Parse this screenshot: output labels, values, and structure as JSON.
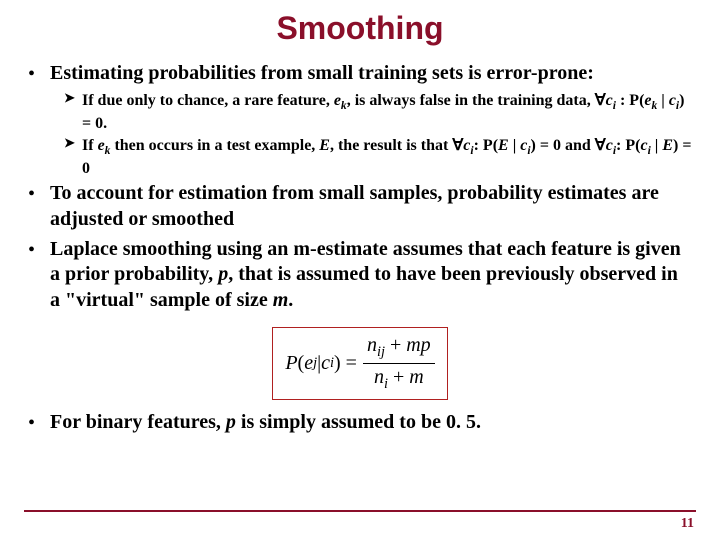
{
  "colors": {
    "title": "#8a0f2a",
    "body": "#000000",
    "rule": "#8a0f2a",
    "pagenum": "#8a0f2a",
    "formula_border": "#b02020"
  },
  "fonts": {
    "title_size": 32,
    "l1_size": 20,
    "l2_size": 16,
    "formula_size": 20,
    "pagenum_size": 14
  },
  "title": "Smoothing",
  "b1": "Estimating probabilities from small training sets is error-prone:",
  "b1a_pre": "If due only to chance, a rare feature, ",
  "b1a_ek": "e",
  "b1a_ek_sub": "k",
  "b1a_mid": ", is always false in the training data, ",
  "b1a_forall1": "∀",
  "b1a_ci": "c",
  "b1a_ci_sub": "i",
  "b1a_colon": " : P(",
  "b1a_ek2": "e",
  "b1a_ek2_sub": "k",
  "b1a_bar": " | ",
  "b1a_ci2": "c",
  "b1a_ci2_sub": "i",
  "b1a_end": ") = 0.",
  "b1b_pre": "If ",
  "b1b_ek": "e",
  "b1b_ek_sub": "k",
  "b1b_mid1": " then occurs in a test example, ",
  "b1b_E": "E",
  "b1b_mid2": ", the result is that ∀",
  "b1b_ci": "c",
  "b1b_ci_sub": "i",
  "b1b_mid3": ": P(",
  "b1b_E2": "E",
  "b1b_bar": " | ",
  "b1b_ci2": "c",
  "b1b_ci2_sub": "i",
  "b1b_mid4": ") = 0 and ∀",
  "b1b_ci3": "c",
  "b1b_ci3_sub": "i",
  "b1b_mid5": ": P(",
  "b1b_ci4": "c",
  "b1b_ci4_sub": "i",
  "b1b_bar2": " | ",
  "b1b_E3": "E",
  "b1b_end": ") = 0",
  "b2": "To account for estimation from small samples, probability estimates are adjusted or smoothed",
  "b3a": "Laplace smoothing using an m-estimate assumes that each feature is given a prior probability, ",
  "b3_p": "p",
  "b3b": ", that is assumed to have been previously observed in a \"virtual\" sample of size ",
  "b3_m": "m",
  "b3c": ".",
  "f_lhs1": "P",
  "f_lhs2": "(",
  "f_ej": "e",
  "f_ej_sub": "j",
  "f_bar": " | ",
  "f_ci": "c",
  "f_ci_sub": "i",
  "f_lhs3": ") = ",
  "f_num1": "n",
  "f_num1_sub": "ij",
  "f_num2": " + ",
  "f_num3": "mp",
  "f_den1": "n",
  "f_den1_sub": "i",
  "f_den2": " + ",
  "f_den3": "m",
  "b4a": "For binary features, ",
  "b4_p": "p",
  "b4b": " is simply assumed to be 0. 5.",
  "pagenum": "11"
}
